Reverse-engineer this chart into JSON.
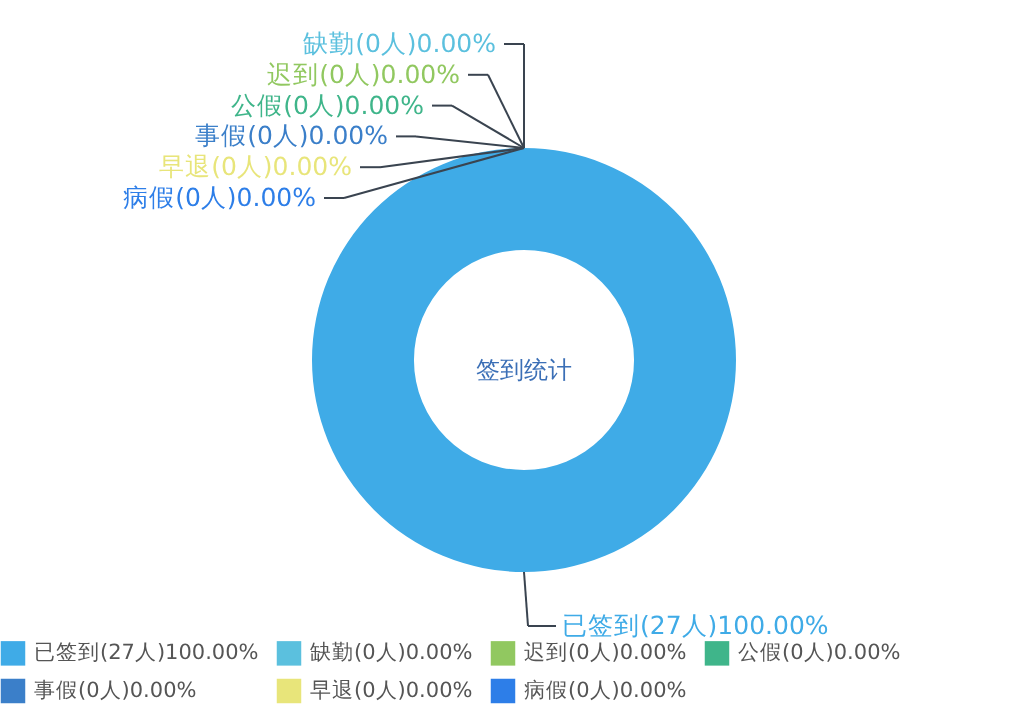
{
  "chart_data": {
    "type": "donut",
    "annotations": [
      "签到统计"
    ],
    "categories": [
      "已签到",
      "缺勤",
      "迟到",
      "公假",
      "事假",
      "早退",
      "病假"
    ],
    "values": [
      27,
      0,
      0,
      0,
      0,
      0,
      0
    ],
    "value_labels": [
      "(27人)100.00%",
      "(0人)0.00%",
      "(0人)0.00%",
      "(0人)0.00%",
      "(0人)0.00%",
      "(0人)0.00%",
      "(0人)0.00%"
    ],
    "colors": [
      "#3fabe7",
      "#5bc0de",
      "#91c860",
      "#3fb58a",
      "#3b7fc9",
      "#e8e57a",
      "#2d7ee8"
    ],
    "legend": "bottom"
  }
}
